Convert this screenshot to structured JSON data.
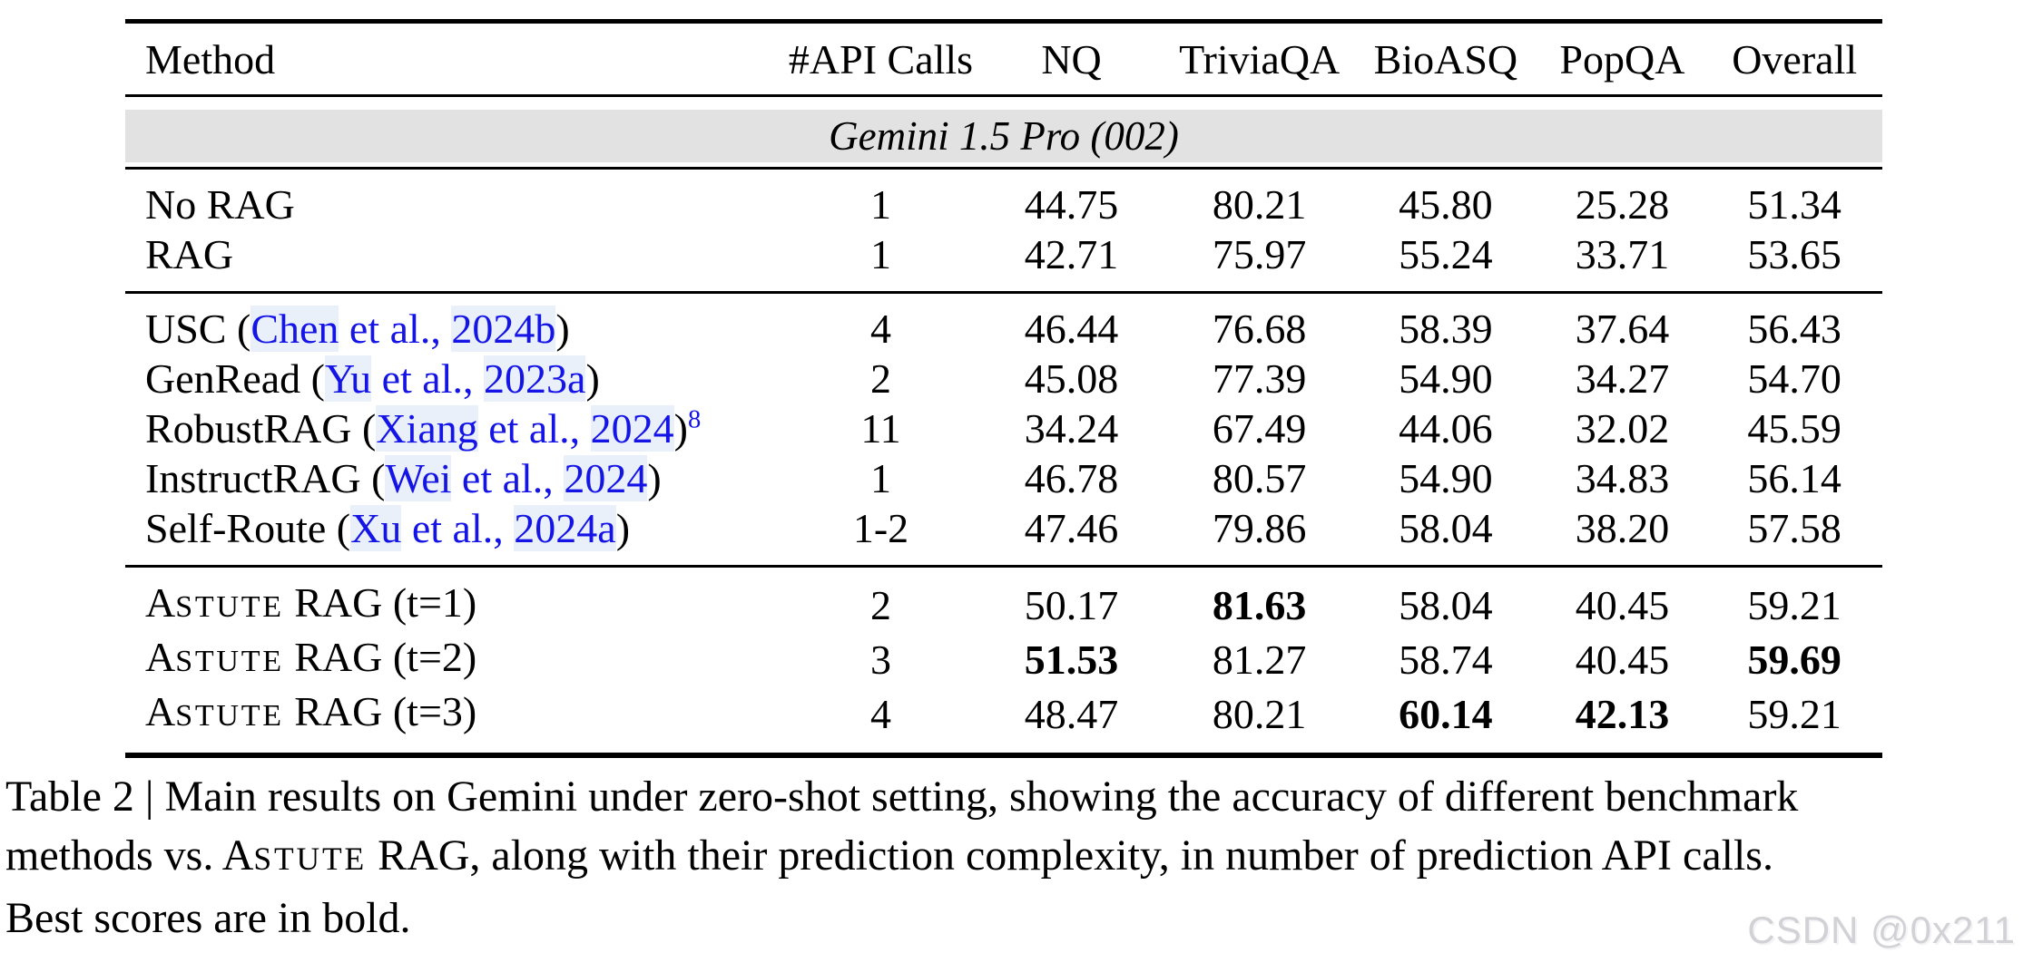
{
  "colors": {
    "link_blue": "#1414e6",
    "link_highlight": "#eaf0fa",
    "group_band_bg": "#e2e2e2",
    "watermark_gray": "#d2d2d6",
    "rule_black": "#000000"
  },
  "table": {
    "columns": [
      "Method",
      "#API Calls",
      "NQ",
      "TriviaQA",
      "BioASQ",
      "PopQA",
      "Overall"
    ],
    "group_header": "Gemini 1.5 Pro (002)",
    "sections": [
      {
        "rows": [
          {
            "method": [
              {
                "t": "No RAG"
              }
            ],
            "api": "1",
            "values": [
              "44.75",
              "80.21",
              "45.80",
              "25.28",
              "51.34"
            ],
            "bold": [
              0,
              0,
              0,
              0,
              0
            ]
          },
          {
            "method": [
              {
                "t": "RAG"
              }
            ],
            "api": "1",
            "values": [
              "42.71",
              "75.97",
              "55.24",
              "33.71",
              "53.65"
            ],
            "bold": [
              0,
              0,
              0,
              0,
              0
            ]
          }
        ]
      },
      {
        "rows": [
          {
            "method": [
              {
                "t": "USC ("
              },
              {
                "t": "Chen",
                "s": "link-hl"
              },
              {
                "t": " et al., ",
                "s": "link"
              },
              {
                "t": "2024b",
                "s": "link-hl"
              },
              {
                "t": ")"
              }
            ],
            "api": "4",
            "values": [
              "46.44",
              "76.68",
              "58.39",
              "37.64",
              "56.43"
            ],
            "bold": [
              0,
              0,
              0,
              0,
              0
            ]
          },
          {
            "method": [
              {
                "t": "GenRead ("
              },
              {
                "t": "Yu",
                "s": "link-hl"
              },
              {
                "t": " et al., ",
                "s": "link"
              },
              {
                "t": "2023a",
                "s": "link-hl"
              },
              {
                "t": ")"
              }
            ],
            "api": "2",
            "values": [
              "45.08",
              "77.39",
              "54.90",
              "34.27",
              "54.70"
            ],
            "bold": [
              0,
              0,
              0,
              0,
              0
            ]
          },
          {
            "method": [
              {
                "t": "RobustRAG ("
              },
              {
                "t": "Xiang",
                "s": "link-hl"
              },
              {
                "t": " et al., ",
                "s": "link"
              },
              {
                "t": "2024",
                "s": "link-hl"
              },
              {
                "t": ")"
              },
              {
                "t": "8",
                "s": "sup"
              }
            ],
            "api": "11",
            "values": [
              "34.24",
              "67.49",
              "44.06",
              "32.02",
              "45.59"
            ],
            "bold": [
              0,
              0,
              0,
              0,
              0
            ]
          },
          {
            "method": [
              {
                "t": "InstructRAG ("
              },
              {
                "t": "Wei",
                "s": "link-hl"
              },
              {
                "t": " et al., ",
                "s": "link"
              },
              {
                "t": "2024",
                "s": "link-hl"
              },
              {
                "t": ")"
              }
            ],
            "api": "1",
            "values": [
              "46.78",
              "80.57",
              "54.90",
              "34.83",
              "56.14"
            ],
            "bold": [
              0,
              0,
              0,
              0,
              0
            ]
          },
          {
            "method": [
              {
                "t": "Self-Route ("
              },
              {
                "t": "Xu",
                "s": "link-hl"
              },
              {
                "t": " et al., ",
                "s": "link"
              },
              {
                "t": "2024a",
                "s": "link-hl"
              },
              {
                "t": ")"
              }
            ],
            "api": "1-2",
            "values": [
              "47.46",
              "79.86",
              "58.04",
              "38.20",
              "57.58"
            ],
            "bold": [
              0,
              0,
              0,
              0,
              0
            ]
          }
        ]
      },
      {
        "rows": [
          {
            "method": [
              {
                "t": "Astute",
                "s": "sc"
              },
              {
                "t": " RAG (t=1)"
              }
            ],
            "api": "2",
            "values": [
              "50.17",
              "81.63",
              "58.04",
              "40.45",
              "59.21"
            ],
            "bold": [
              0,
              1,
              0,
              0,
              0
            ]
          },
          {
            "method": [
              {
                "t": "Astute",
                "s": "sc"
              },
              {
                "t": " RAG (t=2)"
              }
            ],
            "api": "3",
            "values": [
              "51.53",
              "81.27",
              "58.74",
              "40.45",
              "59.69"
            ],
            "bold": [
              1,
              0,
              0,
              0,
              1
            ]
          },
          {
            "method": [
              {
                "t": "Astute",
                "s": "sc"
              },
              {
                "t": " RAG (t=3)"
              }
            ],
            "api": "4",
            "values": [
              "48.47",
              "80.21",
              "60.14",
              "42.13",
              "59.21"
            ],
            "bold": [
              0,
              0,
              1,
              1,
              0
            ]
          }
        ]
      }
    ]
  },
  "caption": {
    "lines": [
      [
        {
          "t": "Table 2 | Main results on Gemini under zero-shot setting, showing the accuracy of different benchmark"
        }
      ],
      [
        {
          "t": "methods vs. "
        },
        {
          "t": "Astute",
          "s": "sc"
        },
        {
          "t": " RAG, along with their prediction complexity, in number of prediction API calls."
        }
      ],
      [
        {
          "t": "Best scores are in bold."
        }
      ]
    ]
  },
  "watermark": {
    "text": "CSDN @0x211"
  }
}
